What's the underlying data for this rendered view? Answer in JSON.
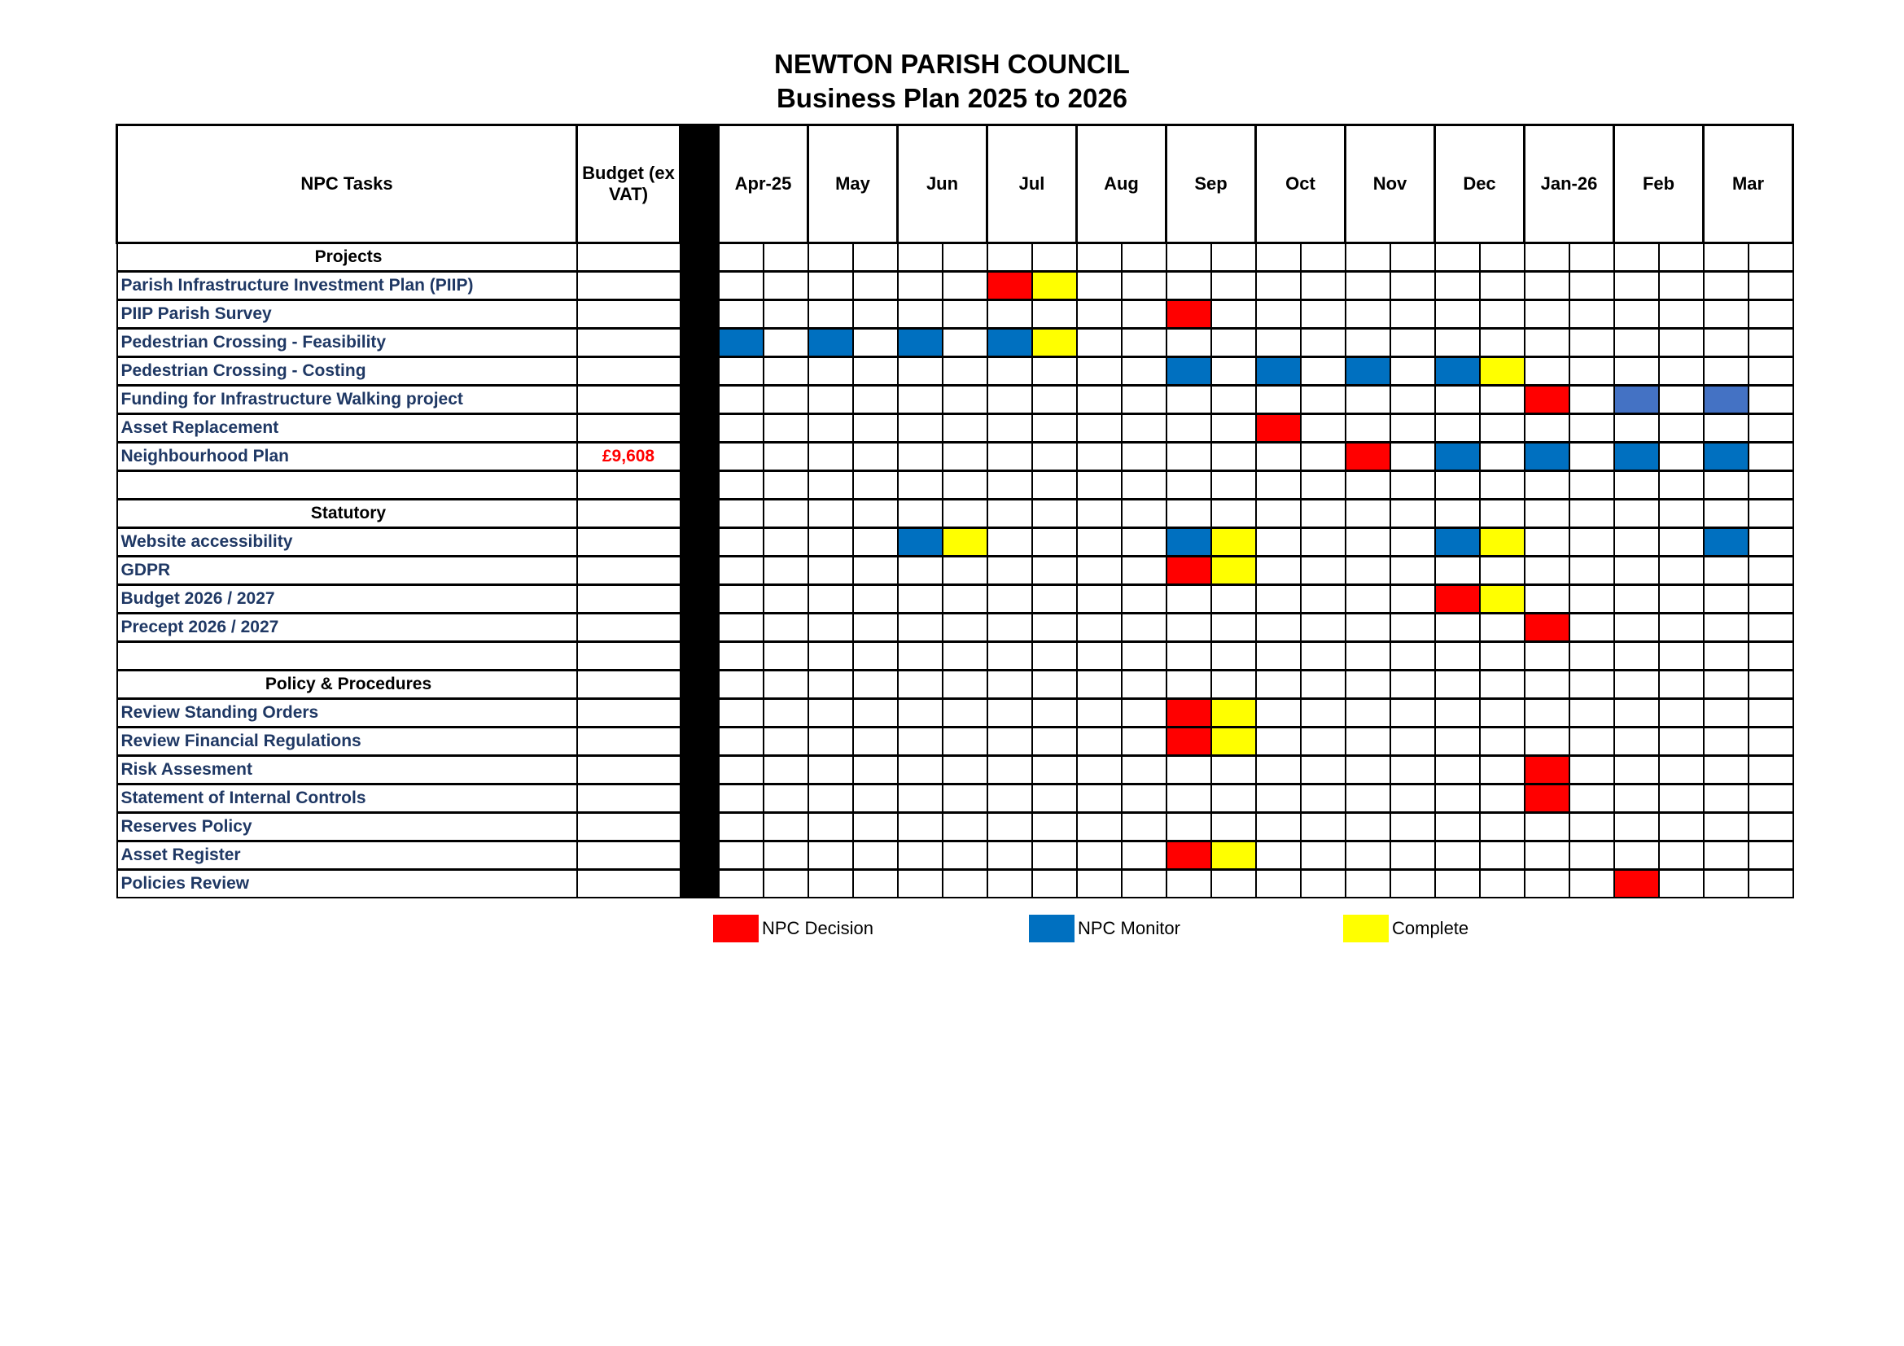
{
  "title": "NEWTON PARISH COUNCIL",
  "subtitle": "Business Plan 2025 to 2026",
  "headers": {
    "tasks": "NPC Tasks",
    "budget": "Budget (ex VAT)"
  },
  "months": [
    "Apr-25",
    "May",
    "Jun",
    "Jul",
    "Aug",
    "Sep",
    "Oct",
    "Nov",
    "Dec",
    "Jan-26",
    "Feb",
    "Mar"
  ],
  "colors": {
    "R": "#ff0000",
    "B": "#0070c0",
    "L": "#4472c4",
    "Y": "#ffff00"
  },
  "rows": [
    {
      "label": "Projects",
      "header": true,
      "cells": {}
    },
    {
      "label": "Parish Infrastructure Investment Plan (PIIP)",
      "cells": {
        "6": "R",
        "7": "Y"
      }
    },
    {
      "label": "PIIP Parish Survey",
      "cells": {
        "10": "R"
      }
    },
    {
      "label": "Pedestrian Crossing - Feasibility",
      "cells": {
        "0": "B",
        "2": "B",
        "4": "B",
        "6": "B",
        "7": "Y"
      }
    },
    {
      "label": "Pedestrian Crossing - Costing",
      "cells": {
        "10": "B",
        "12": "B",
        "14": "B",
        "16": "B",
        "17": "Y"
      }
    },
    {
      "label": "Funding for Infrastructure Walking project",
      "cells": {
        "18": "R",
        "20": "L",
        "22": "L"
      }
    },
    {
      "label": "Asset Replacement",
      "cells": {
        "12": "R"
      }
    },
    {
      "label": "Neighbourhood Plan",
      "budget": "£9,608",
      "cells": {
        "14": "R",
        "16": "B",
        "18": "B",
        "20": "B",
        "22": "B"
      }
    },
    {
      "label": "",
      "cells": {}
    },
    {
      "label": "Statutory",
      "header": true,
      "cells": {}
    },
    {
      "label": "Website accessibility",
      "cells": {
        "4": "B",
        "5": "Y",
        "10": "B",
        "11": "Y",
        "16": "B",
        "17": "Y",
        "22": "B"
      }
    },
    {
      "label": "GDPR",
      "cells": {
        "10": "R",
        "11": "Y"
      }
    },
    {
      "label": "Budget 2026 / 2027",
      "cells": {
        "16": "R",
        "17": "Y"
      }
    },
    {
      "label": "Precept 2026 / 2027",
      "cells": {
        "18": "R"
      }
    },
    {
      "label": "",
      "cells": {}
    },
    {
      "label": "Policy & Procedures",
      "header": true,
      "cells": {}
    },
    {
      "label": "Review Standing Orders",
      "cells": {
        "10": "R",
        "11": "Y"
      }
    },
    {
      "label": "Review Financial Regulations",
      "cells": {
        "10": "R",
        "11": "Y"
      }
    },
    {
      "label": "Risk Assesment",
      "cells": {
        "18": "R"
      }
    },
    {
      "label": "Statement of Internal Controls",
      "cells": {
        "18": "R"
      }
    },
    {
      "label": "Reserves Policy",
      "cells": {}
    },
    {
      "label": "Asset Register",
      "cells": {
        "10": "R",
        "11": "Y"
      }
    },
    {
      "label": "Policies Review",
      "cells": {
        "20": "R"
      }
    }
  ],
  "legend": [
    {
      "label": "NPC Decision",
      "color": "#ff0000"
    },
    {
      "label": "NPC Monitor",
      "color": "#0070c0"
    },
    {
      "label": "Complete",
      "color": "#ffff00"
    }
  ]
}
